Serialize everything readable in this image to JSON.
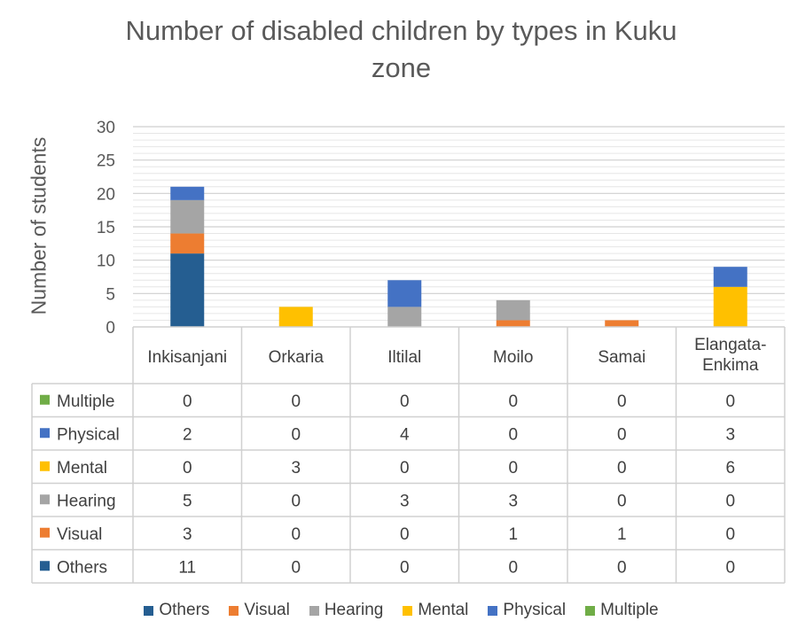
{
  "chart_data": {
    "type": "bar",
    "stacked": true,
    "title": "Number of disabled children by types in Kuku zone",
    "ylabel": "Number of students",
    "xlabel": "",
    "ylim": [
      0,
      30
    ],
    "yticks": [
      0,
      5,
      10,
      15,
      20,
      25,
      30
    ],
    "grid": true,
    "legend_position": "bottom",
    "data_table": true,
    "categories": [
      "Inkisanjani",
      "Orkaria",
      "Iltilal",
      "Moilo",
      "Samai",
      "Elangata-Enkima"
    ],
    "series": [
      {
        "name": "Others",
        "color": "#255e91",
        "values": [
          11,
          0,
          0,
          0,
          0,
          0
        ]
      },
      {
        "name": "Visual",
        "color": "#ed7d31",
        "values": [
          3,
          0,
          0,
          1,
          1,
          0
        ]
      },
      {
        "name": "Hearing",
        "color": "#a5a5a5",
        "values": [
          5,
          0,
          3,
          3,
          0,
          0
        ]
      },
      {
        "name": "Mental",
        "color": "#ffc000",
        "values": [
          0,
          3,
          0,
          0,
          0,
          6
        ]
      },
      {
        "name": "Physical",
        "color": "#4472c4",
        "values": [
          2,
          0,
          4,
          0,
          0,
          3
        ]
      },
      {
        "name": "Multiple",
        "color": "#70ad47",
        "values": [
          0,
          0,
          0,
          0,
          0,
          0
        ]
      }
    ],
    "table_row_order": [
      "Multiple",
      "Physical",
      "Mental",
      "Hearing",
      "Visual",
      "Others"
    ]
  }
}
